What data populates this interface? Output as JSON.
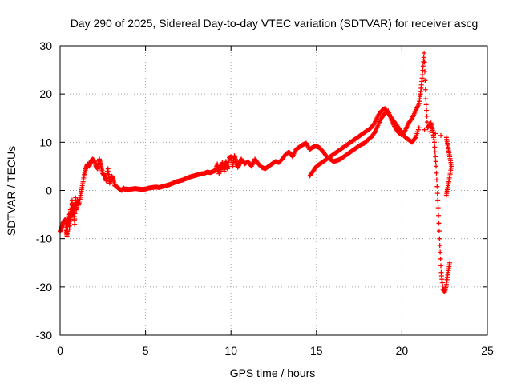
{
  "chart_data": {
    "type": "scatter",
    "title": "Day 290 of 2025, Sidereal Day-to-day VTEC variation (SDTVAR) for receiver ascg",
    "xlabel": "GPS time / hours",
    "ylabel": "SDTVAR / TECUs",
    "xlim": [
      0,
      25
    ],
    "ylim": [
      -30,
      30
    ],
    "xticks": [
      0,
      5,
      10,
      15,
      20,
      25
    ],
    "yticks": [
      -30,
      -20,
      -10,
      0,
      10,
      20,
      30
    ],
    "grid": true,
    "marker": "plus",
    "series": [
      {
        "name": "SDTVAR",
        "color": "#ff0000",
        "x": [
          0.0,
          0.1,
          0.2,
          0.3,
          0.35,
          0.4,
          0.45,
          0.5,
          0.55,
          0.6,
          0.65,
          0.7,
          0.75,
          0.8,
          0.85,
          0.9,
          0.95,
          1.0,
          1.1,
          1.2,
          1.3,
          1.4,
          1.5,
          1.6,
          1.7,
          1.8,
          1.9,
          2.0,
          2.1,
          2.2,
          2.3,
          2.4,
          2.5,
          2.6,
          2.7,
          2.8,
          2.9,
          3.0,
          3.1,
          3.2,
          3.3,
          3.4,
          3.5,
          3.6,
          3.7,
          3.8,
          3.9,
          4.0,
          4.2,
          4.4,
          4.6,
          4.8,
          5.0,
          5.2,
          5.4,
          5.6,
          5.8,
          6.0,
          6.2,
          6.4,
          6.6,
          6.8,
          7.0,
          7.2,
          7.4,
          7.6,
          7.8,
          8.0,
          8.2,
          8.4,
          8.6,
          8.8,
          9.0,
          9.1,
          9.2,
          9.3,
          9.4,
          9.5,
          9.6,
          9.7,
          9.8,
          9.9,
          10.0,
          10.1,
          10.2,
          10.3,
          10.4,
          10.5,
          10.6,
          10.8,
          11.0,
          11.2,
          11.4,
          11.6,
          11.8,
          12.0,
          12.2,
          12.4,
          12.6,
          12.8,
          13.0,
          13.2,
          13.4,
          13.6,
          13.8,
          14.0,
          14.2,
          14.4,
          14.6,
          14.8,
          15.0,
          15.2,
          15.4,
          15.6,
          15.8,
          16.0,
          16.2,
          16.4,
          16.6,
          16.8,
          17.0,
          17.2,
          17.4,
          17.6,
          17.8,
          18.0,
          18.2,
          18.4,
          18.6,
          18.8,
          19.0,
          19.2,
          19.4,
          19.6,
          19.8,
          20.0,
          20.2,
          20.4,
          20.6,
          20.8,
          21.0,
          21.1,
          21.2,
          21.3,
          21.4,
          21.5,
          21.6,
          21.7,
          21.8,
          21.9,
          22.0,
          22.1,
          22.2,
          22.3,
          22.4,
          22.5,
          22.6,
          22.7,
          22.8
        ],
        "y": [
          -8.5,
          -7.5,
          -6.5,
          -6.0,
          -8.0,
          -9.5,
          -7.0,
          -5.0,
          -8.0,
          -4.0,
          -6.0,
          -2.0,
          -5.0,
          -3.0,
          -7.0,
          -1.5,
          -4.0,
          -2.0,
          -3.0,
          -1.0,
          1.0,
          3.0,
          4.5,
          5.5,
          5.0,
          6.0,
          6.5,
          6.2,
          5.0,
          4.5,
          6.5,
          5.0,
          3.5,
          3.0,
          2.0,
          4.5,
          1.5,
          3.0,
          2.5,
          1.0,
          0.8,
          0.5,
          0.2,
          0.0,
          0.5,
          0.2,
          0.3,
          0.2,
          0.3,
          0.4,
          0.3,
          0.2,
          0.3,
          0.5,
          0.6,
          0.7,
          0.6,
          0.8,
          1.0,
          1.2,
          1.5,
          1.8,
          2.0,
          2.2,
          2.5,
          2.8,
          3.0,
          3.2,
          3.4,
          3.5,
          3.8,
          3.7,
          4.0,
          4.2,
          5.5,
          3.5,
          4.8,
          5.8,
          4.0,
          6.0,
          4.5,
          6.8,
          7.0,
          5.0,
          7.2,
          6.0,
          4.8,
          5.5,
          6.5,
          5.5,
          6.0,
          5.0,
          6.5,
          5.5,
          4.8,
          4.5,
          5.0,
          5.5,
          6.0,
          5.8,
          6.5,
          7.5,
          8.0,
          7.0,
          8.5,
          9.0,
          9.5,
          9.8,
          8.5,
          9.0,
          9.2,
          8.8,
          8.0,
          7.0,
          6.5,
          6.0,
          6.2,
          6.5,
          7.0,
          7.5,
          8.0,
          8.5,
          9.0,
          9.5,
          9.8,
          10.5,
          11.0,
          12.0,
          13.5,
          15.0,
          16.0,
          16.5,
          14.5,
          13.0,
          12.0,
          11.5,
          12.5,
          14.0,
          15.0,
          16.5,
          18.0,
          20.5,
          24.0,
          28.5,
          19.0,
          13.0,
          13.5,
          14.0,
          12.5,
          10.0,
          5.0,
          -2.0,
          -10.0,
          -17.0,
          -20.5,
          -21.0,
          -19.5,
          -17.0,
          -15.0
        ]
      },
      {
        "name": "SDTVAR (secondary track)",
        "color": "#ff0000",
        "x": [
          14.6,
          14.8,
          15.0,
          15.2,
          15.4,
          15.6,
          15.8,
          16.0,
          16.2,
          16.4,
          16.6,
          16.8,
          17.0,
          17.2,
          17.4,
          17.6,
          17.8,
          18.0,
          18.2,
          18.4,
          18.6,
          18.8,
          19.0,
          19.2,
          19.4,
          19.6,
          19.8,
          20.0,
          20.2,
          20.4,
          20.6,
          20.8,
          21.0,
          22.6,
          22.7,
          22.8,
          22.9,
          22.8,
          22.7,
          22.6
        ],
        "y": [
          3.0,
          4.0,
          5.0,
          5.5,
          6.0,
          6.5,
          7.0,
          7.5,
          8.0,
          8.5,
          9.0,
          9.5,
          10.0,
          10.5,
          11.0,
          11.5,
          12.0,
          12.5,
          13.0,
          14.0,
          15.5,
          16.5,
          17.0,
          16.0,
          15.0,
          14.0,
          13.0,
          12.0,
          11.0,
          10.5,
          10.0,
          11.0,
          13.0,
          11.0,
          9.0,
          7.0,
          5.0,
          3.0,
          1.0,
          -1.0
        ]
      }
    ]
  }
}
